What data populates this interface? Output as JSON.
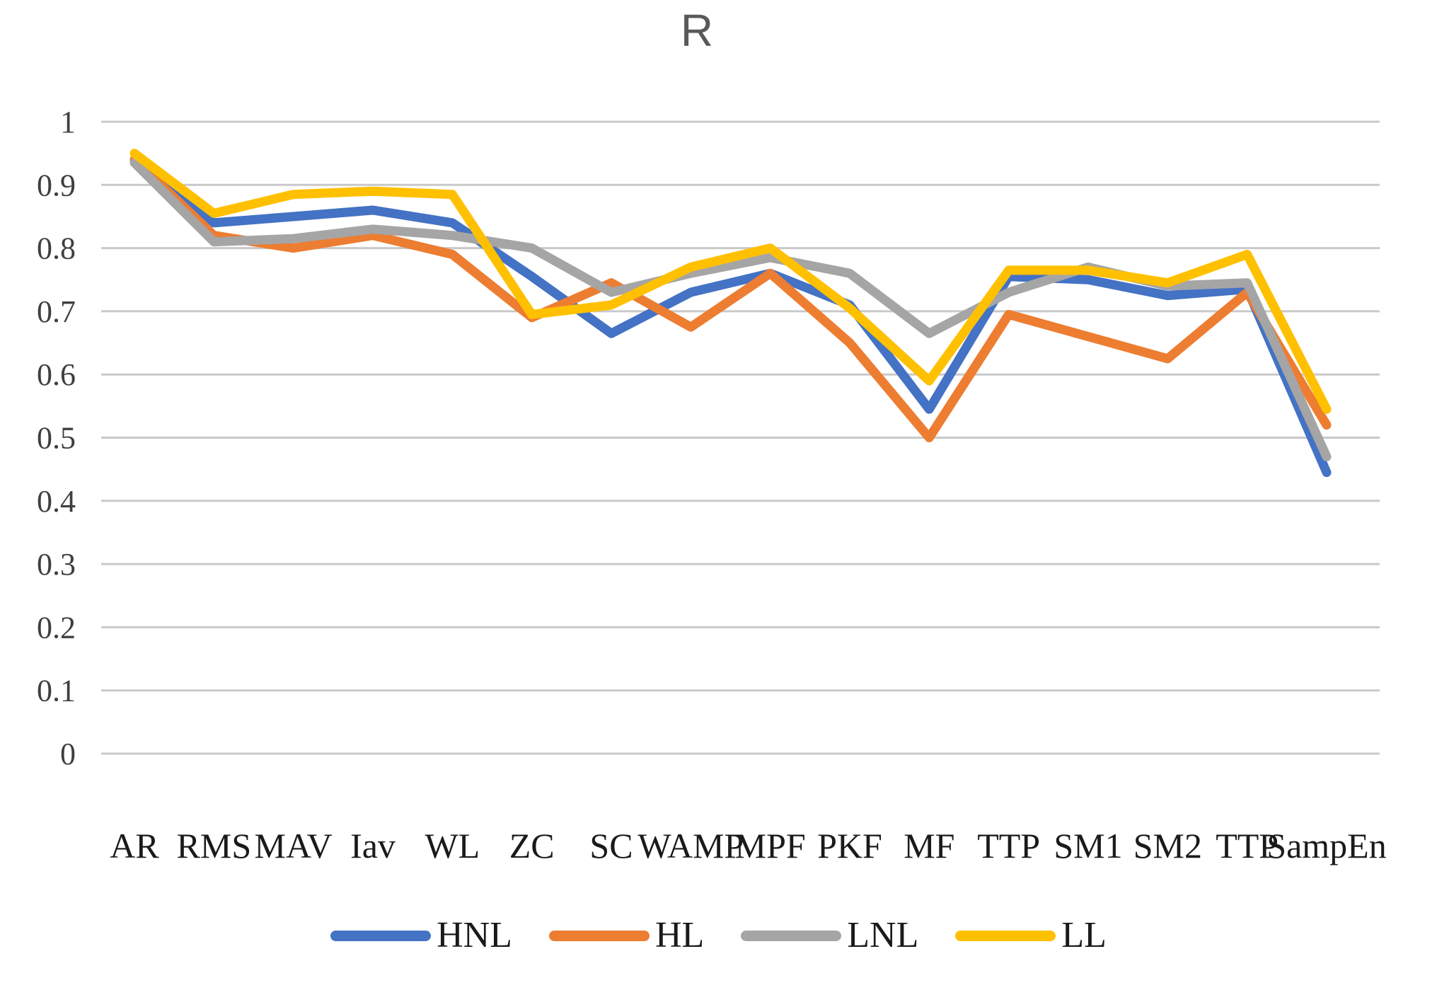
{
  "page": {
    "background": "#ffffff"
  },
  "chart_data": {
    "type": "line",
    "title": "R",
    "title_color": "#595959",
    "categories": [
      "AR",
      "RMS",
      "MAV",
      "Iav",
      "WL",
      "ZC",
      "SC",
      "WAMP",
      "MPF",
      "PKF",
      "MF",
      "TTP",
      "SM1",
      "SM2",
      "TTP",
      "SampEn"
    ],
    "series": [
      {
        "name": "HNL",
        "color": "#4472C4",
        "values": [
          0.94,
          0.84,
          0.85,
          0.86,
          0.84,
          0.755,
          0.665,
          0.73,
          0.76,
          0.71,
          0.545,
          0.755,
          0.75,
          0.725,
          0.735,
          0.445
        ]
      },
      {
        "name": "HL",
        "color": "#ED7D31",
        "values": [
          0.94,
          0.82,
          0.8,
          0.82,
          0.79,
          0.69,
          0.745,
          0.675,
          0.76,
          0.65,
          0.5,
          0.695,
          0.66,
          0.625,
          0.73,
          0.52
        ]
      },
      {
        "name": "LNL",
        "color": "#A5A5A5",
        "values": [
          0.935,
          0.81,
          0.815,
          0.83,
          0.82,
          0.8,
          0.73,
          0.76,
          0.785,
          0.76,
          0.665,
          0.73,
          0.77,
          0.74,
          0.745,
          0.47
        ]
      },
      {
        "name": "LL",
        "color": "#FFC000",
        "values": [
          0.95,
          0.855,
          0.885,
          0.89,
          0.885,
          0.695,
          0.71,
          0.77,
          0.8,
          0.705,
          0.59,
          0.765,
          0.765,
          0.745,
          0.79,
          0.545
        ]
      }
    ],
    "ylim": [
      0,
      1
    ],
    "ytick_labels": [
      "0",
      "0.1",
      "0.2",
      "0.3",
      "0.4",
      "0.5",
      "0.6",
      "0.7",
      "0.8",
      "0.9",
      "1"
    ],
    "xlabel": "",
    "ylabel": "",
    "grid": true,
    "gridline_color": "#C9C9C9",
    "axis_tick_color": "#3f3f3f",
    "x_label_color": "#1a1a1a",
    "legend_position": "bottom"
  }
}
